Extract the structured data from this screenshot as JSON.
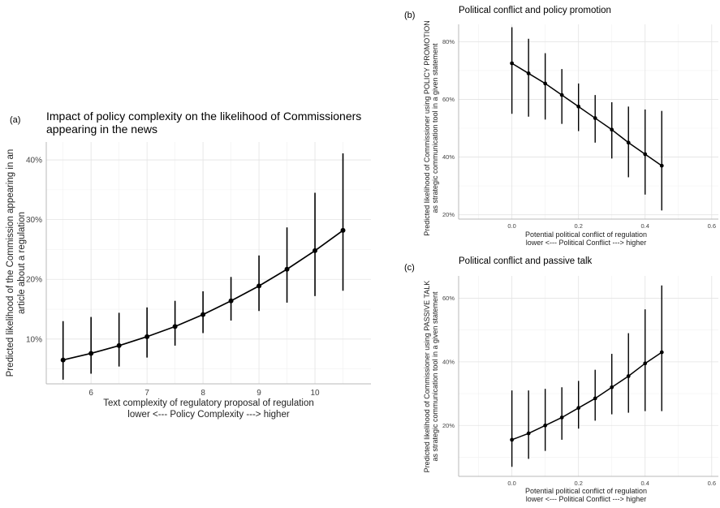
{
  "chart_data": [
    {
      "id": "a",
      "panel_tag": "(a)",
      "type": "line",
      "title_lines": [
        "Impact of policy complexity on the likelihood of Commissioners",
        "appearing in the news"
      ],
      "xlabel_lines": [
        "Text complexity of regulatory proposal of regulation",
        "lower <---   Policy Complexity   ---> higher"
      ],
      "ylabel_lines": [
        "Predicted likelihood of the Commission appearing in an",
        "article about  a regulation"
      ],
      "xlim": [
        5.2,
        11.0
      ],
      "ylim": [
        2.5,
        43.0
      ],
      "xticks": [
        6,
        7,
        8,
        9,
        10
      ],
      "yticks": [
        10,
        20,
        30,
        40
      ],
      "ytick_suffix": "%",
      "grid": true,
      "series": [
        {
          "x": [
            5.5,
            6.0,
            6.5,
            7.0,
            7.5,
            8.0,
            8.5,
            9.0,
            9.5,
            10.0,
            10.5
          ],
          "y": [
            6.5,
            7.6,
            8.9,
            10.4,
            12.1,
            14.1,
            16.4,
            18.9,
            21.7,
            24.8,
            28.2
          ],
          "lower": [
            3.2,
            4.2,
            5.4,
            6.9,
            8.9,
            11.0,
            13.1,
            14.7,
            16.1,
            17.2,
            18.1
          ],
          "upper": [
            13.0,
            13.7,
            14.4,
            15.3,
            16.4,
            18.0,
            20.4,
            24.0,
            28.7,
            34.5,
            41.1
          ]
        }
      ]
    },
    {
      "id": "b",
      "panel_tag": "(b)",
      "type": "line",
      "title_lines": [
        "Political conflict and policy promotion"
      ],
      "xlabel_lines": [
        "Potential political conflict of regulation",
        "lower <---   Political Conflict   ---> higher"
      ],
      "ylabel_lines": [
        "Predicted likelihood of Commissioner using POLICY PROMOTION",
        "as strategic communication tool in a given statement"
      ],
      "xlim": [
        -0.16,
        0.62
      ],
      "ylim": [
        18.5,
        86.0
      ],
      "xticks": [
        0.0,
        0.2,
        0.4,
        0.6
      ],
      "xtick_labels": [
        "0.0",
        "0.2",
        "0.4",
        "0.6"
      ],
      "yticks": [
        20,
        40,
        60,
        80
      ],
      "ytick_suffix": "%",
      "grid": true,
      "series": [
        {
          "x": [
            0.0,
            0.05,
            0.1,
            0.15,
            0.2,
            0.25,
            0.3,
            0.35,
            0.4,
            0.45
          ],
          "y": [
            72.5,
            69.0,
            65.5,
            61.5,
            57.5,
            53.5,
            49.5,
            45.0,
            41.0,
            37.0
          ],
          "lower": [
            55.0,
            54.0,
            53.0,
            51.5,
            49.0,
            45.0,
            39.5,
            33.0,
            27.0,
            21.5
          ],
          "upper": [
            85.0,
            81.0,
            76.0,
            70.5,
            65.5,
            61.5,
            59.0,
            57.5,
            56.5,
            56.0
          ]
        }
      ]
    },
    {
      "id": "c",
      "panel_tag": "(c)",
      "type": "line",
      "title_lines": [
        "Political conflict and passive talk"
      ],
      "xlabel_lines": [
        "Potential political conflict of regulation",
        "lower <---   Political Conflict   ---> higher"
      ],
      "ylabel_lines": [
        "Predicted likelihood of Commissioner using PASSIVE TALK",
        "as strategic communication tool in a given statement"
      ],
      "xlim": [
        -0.16,
        0.62
      ],
      "ylim": [
        4.0,
        67.0
      ],
      "xticks": [
        0.0,
        0.2,
        0.4,
        0.6
      ],
      "xtick_labels": [
        "0.0",
        "0.2",
        "0.4",
        "0.6"
      ],
      "yticks": [
        20,
        40,
        60
      ],
      "ytick_suffix": "%",
      "grid": true,
      "series": [
        {
          "x": [
            0.0,
            0.05,
            0.1,
            0.15,
            0.2,
            0.25,
            0.3,
            0.35,
            0.4,
            0.45
          ],
          "y": [
            15.5,
            17.5,
            20.0,
            22.5,
            25.5,
            28.5,
            32.0,
            35.5,
            39.5,
            43.0
          ],
          "lower": [
            7.0,
            9.5,
            12.0,
            15.5,
            19.0,
            21.5,
            23.5,
            24.0,
            24.5,
            24.5
          ],
          "upper": [
            31.0,
            31.0,
            31.5,
            32.0,
            34.0,
            37.5,
            42.5,
            49.0,
            56.5,
            64.0
          ]
        }
      ]
    }
  ]
}
